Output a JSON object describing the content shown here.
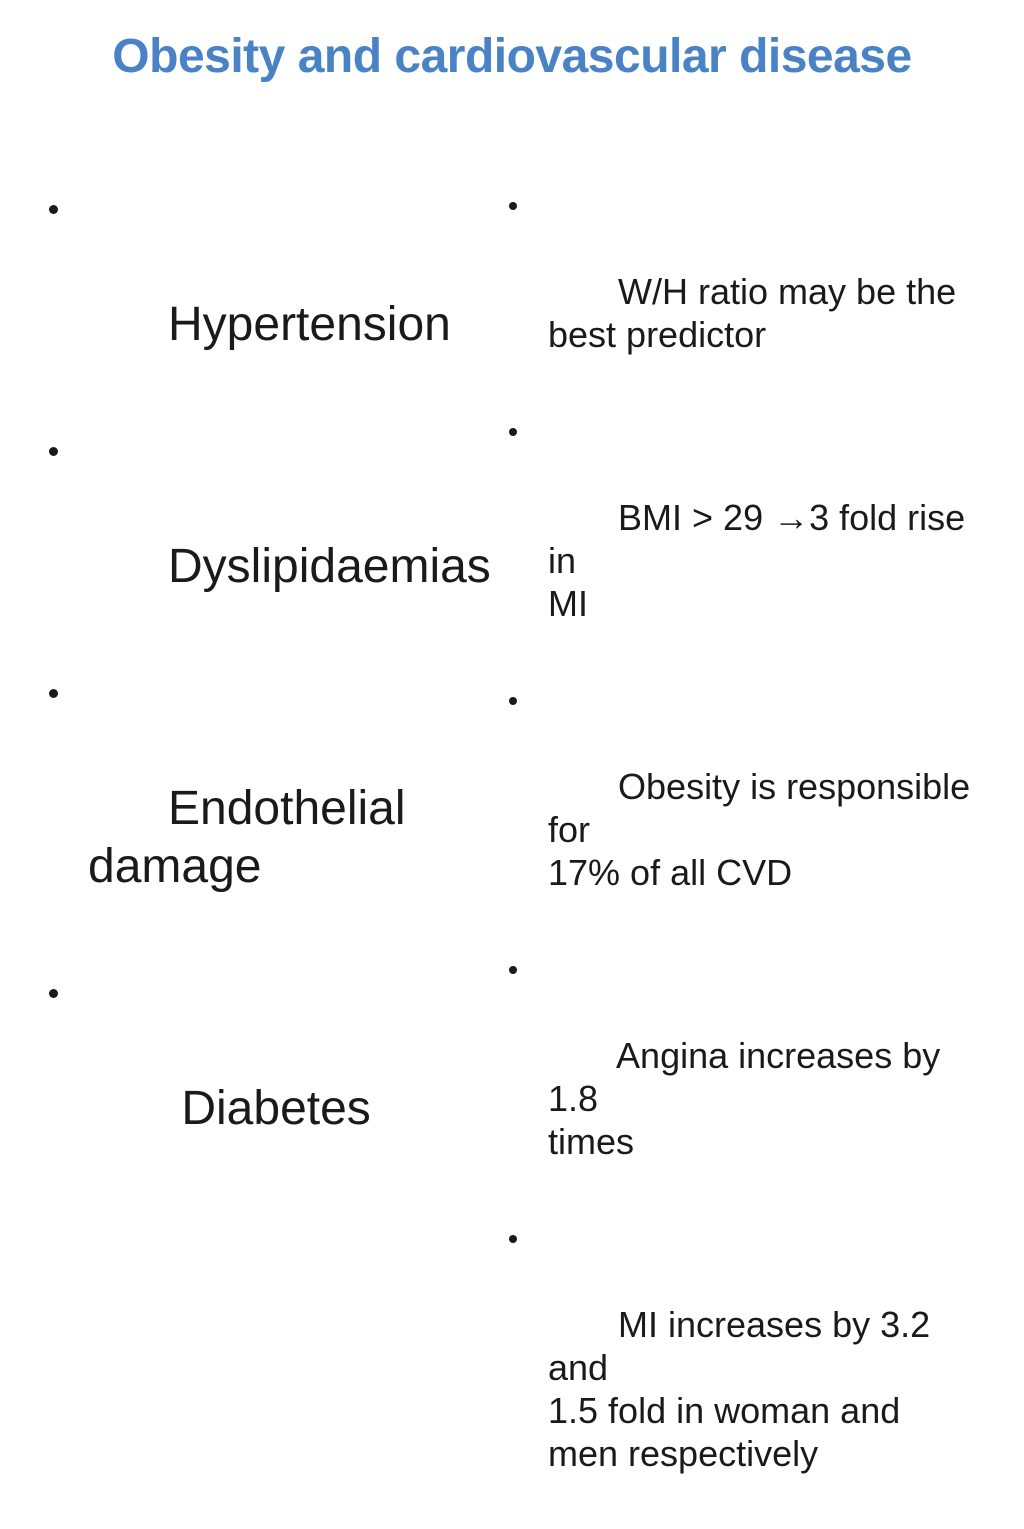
{
  "slide": {
    "title": "Obesity and cardiovascular disease",
    "left_bullets": [
      "Hypertension",
      "Dyslipidaemias",
      "Endothelial damage",
      " Diabetes"
    ],
    "right_bullets": [
      " W/H ratio may be the\nbest predictor",
      " BMI > 29 →3 fold rise in\nMI",
      " Obesity is responsible for\n17% of all CVD",
      " Angina increases by 1.8\ntimes",
      " MI increases by 3.2 and\n1.5 fold in woman and\nmen respectively"
    ]
  },
  "colors": {
    "title_color": "#4A82C6",
    "text_color": "#1A1A1A",
    "background_color": "#FFFFFF"
  }
}
